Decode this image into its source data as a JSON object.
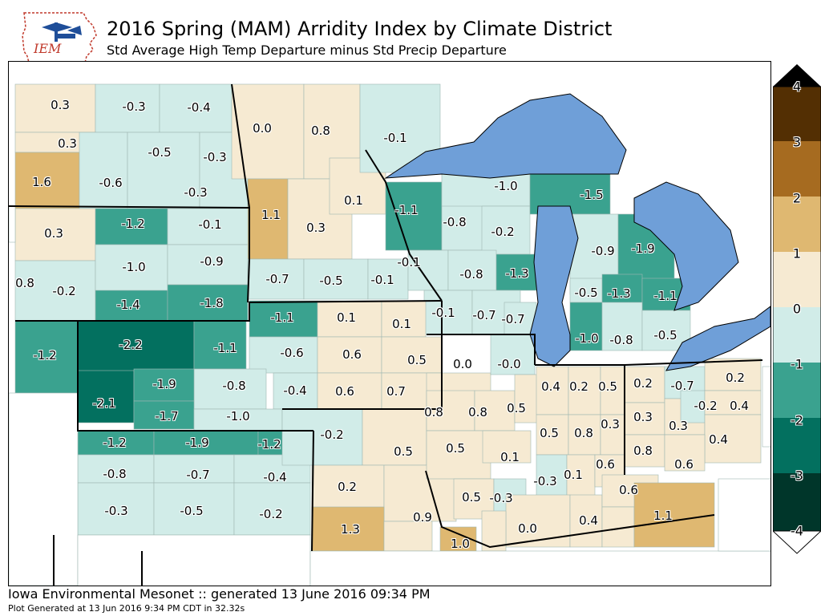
{
  "header": {
    "logo_text": "IEM",
    "title": "2016 Spring (MAM) Arridity Index by Climate District",
    "subtitle": "Std Average High Temp Departure minus Std Precip Departure"
  },
  "colors": {
    "water": "#6f9fd8",
    "land_default": "#ffffff",
    "bins": [
      "#00362a",
      "#03705f",
      "#3aa28f",
      "#d1ece8",
      "#f6ead2",
      "#dfb871",
      "#a66b20",
      "#532f03"
    ]
  },
  "legend": {
    "ticks": [
      "-4",
      "-3",
      "-2",
      "-1",
      "0",
      "1",
      "2",
      "3",
      "4"
    ]
  },
  "districts": [
    {
      "value": "0.3"
    },
    {
      "value": "-0.3"
    },
    {
      "value": "-0.4"
    },
    {
      "value": "0.0"
    },
    {
      "value": "0.8"
    },
    {
      "value": "0.3"
    },
    {
      "value": "-0.5"
    },
    {
      "value": "-0.3"
    },
    {
      "value": "-0.1"
    },
    {
      "value": "1.6"
    },
    {
      "value": "-0.6"
    },
    {
      "value": "-0.3"
    },
    {
      "value": "0.1"
    },
    {
      "value": "-1.0"
    },
    {
      "value": "-1.5"
    },
    {
      "value": "-1.2"
    },
    {
      "value": "-0.1"
    },
    {
      "value": "1.1"
    },
    {
      "value": "-1.1"
    },
    {
      "value": "0.3"
    },
    {
      "value": "0.3"
    },
    {
      "value": "-0.8"
    },
    {
      "value": "-0.2"
    },
    {
      "value": "-0.9"
    },
    {
      "value": "-1.9"
    },
    {
      "value": "-1.0"
    },
    {
      "value": "-0.9"
    },
    {
      "value": "-0.1"
    },
    {
      "value": "0.8"
    },
    {
      "value": "-0.2"
    },
    {
      "value": "-0.7"
    },
    {
      "value": "-0.5"
    },
    {
      "value": "-0.1"
    },
    {
      "value": "-0.8"
    },
    {
      "value": "-1.3"
    },
    {
      "value": "-1.4"
    },
    {
      "value": "-1.8"
    },
    {
      "value": "-0.5"
    },
    {
      "value": "-1.3"
    },
    {
      "value": "-1.1"
    },
    {
      "value": "-1.1"
    },
    {
      "value": "0.1"
    },
    {
      "value": "0.1"
    },
    {
      "value": "-0.1"
    },
    {
      "value": "-0.7"
    },
    {
      "value": "-0.7"
    },
    {
      "value": "-1.2"
    },
    {
      "value": "-2.2"
    },
    {
      "value": "-1.1"
    },
    {
      "value": "-0.6"
    },
    {
      "value": "0.6"
    },
    {
      "value": "0.5"
    },
    {
      "value": "0.0"
    },
    {
      "value": "-0.0"
    },
    {
      "value": "-1.0"
    },
    {
      "value": "-0.8"
    },
    {
      "value": "-0.5"
    },
    {
      "value": "-1.9"
    },
    {
      "value": "-0.8"
    },
    {
      "value": "-0.4"
    },
    {
      "value": "0.6"
    },
    {
      "value": "0.7"
    },
    {
      "value": "0.4"
    },
    {
      "value": "0.2"
    },
    {
      "value": "0.5"
    },
    {
      "value": "0.2"
    },
    {
      "value": "-0.7"
    },
    {
      "value": "0.2"
    },
    {
      "value": "-2.1"
    },
    {
      "value": "-1.7"
    },
    {
      "value": "-1.0"
    },
    {
      "value": "0.8"
    },
    {
      "value": "0.8"
    },
    {
      "value": "0.5"
    },
    {
      "value": "-0.2"
    },
    {
      "value": "0.4"
    },
    {
      "value": "0.3"
    },
    {
      "value": "0.3"
    },
    {
      "value": "0.5"
    },
    {
      "value": "0.8"
    },
    {
      "value": "0.3"
    },
    {
      "value": "0.4"
    },
    {
      "value": "-1.2"
    },
    {
      "value": "-1.9"
    },
    {
      "value": "-1.2"
    },
    {
      "value": "-0.2"
    },
    {
      "value": "0.5"
    },
    {
      "value": "0.5"
    },
    {
      "value": "0.1"
    },
    {
      "value": "0.6"
    },
    {
      "value": "0.8"
    },
    {
      "value": "0.6"
    },
    {
      "value": "-0.8"
    },
    {
      "value": "-0.7"
    },
    {
      "value": "-0.4"
    },
    {
      "value": "-0.3"
    },
    {
      "value": "0.1"
    },
    {
      "value": "0.6"
    },
    {
      "value": "0.2"
    },
    {
      "value": "-0.3"
    },
    {
      "value": "-0.5"
    },
    {
      "value": "-0.2"
    },
    {
      "value": "0.9"
    },
    {
      "value": "0.5"
    },
    {
      "value": "-0.3"
    },
    {
      "value": "0.4"
    },
    {
      "value": "1.1"
    },
    {
      "value": "0.0"
    },
    {
      "value": "1.3"
    },
    {
      "value": "1.0"
    }
  ],
  "footer": {
    "line1": "Iowa Environmental Mesonet :: generated 13 June 2016 09:34 PM",
    "line2": "Plot Generated at 13 Jun 2016 9:34 PM CDT in 32.32s"
  }
}
